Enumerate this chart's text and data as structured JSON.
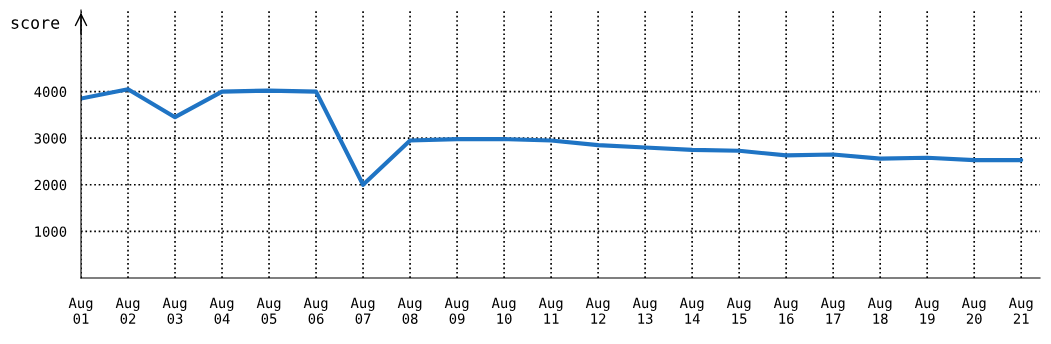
{
  "chart_data": {
    "type": "line",
    "ylabel": "score",
    "categories": [
      "Aug\n01",
      "Aug\n02",
      "Aug\n03",
      "Aug\n04",
      "Aug\n05",
      "Aug\n06",
      "Aug\n07",
      "Aug\n08",
      "Aug\n09",
      "Aug\n10",
      "Aug\n11",
      "Aug\n12",
      "Aug\n13",
      "Aug\n14",
      "Aug\n15",
      "Aug\n16",
      "Aug\n17",
      "Aug\n18",
      "Aug\n19",
      "Aug\n20",
      "Aug\n21"
    ],
    "series": [
      {
        "color": "#1f74c4",
        "values": [
          3850,
          4050,
          3450,
          4000,
          4020,
          4000,
          2000,
          2950,
          2980,
          2980,
          2950,
          2850,
          2800,
          2750,
          2730,
          2630,
          2650,
          2560,
          2580,
          2530,
          2530
        ]
      }
    ],
    "ylim": [
      0,
      5750
    ],
    "yticks": [
      1000,
      2000,
      3000,
      4000
    ],
    "grid": true,
    "marker": "none",
    "line_style": "solid"
  }
}
